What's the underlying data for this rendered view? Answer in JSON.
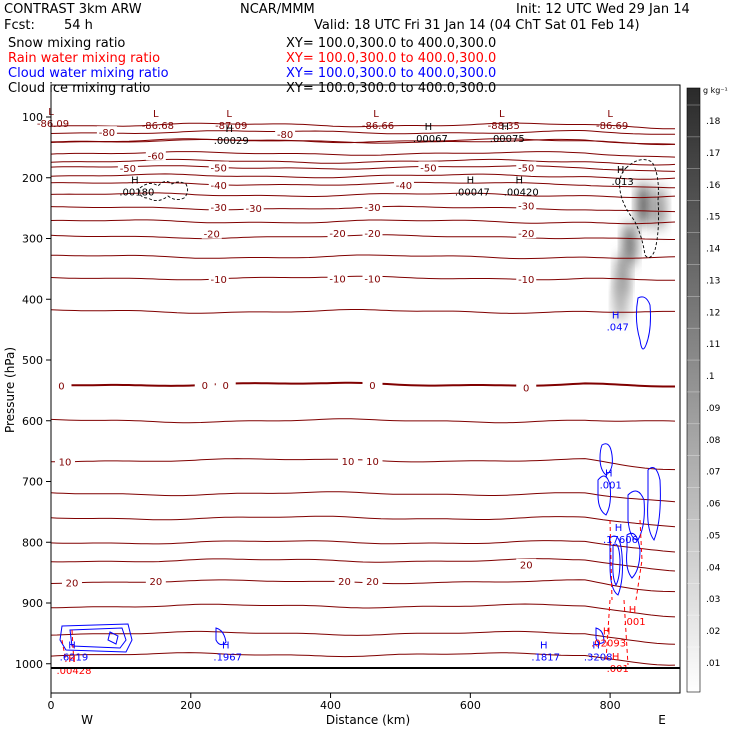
{
  "header": {
    "model": "CONTRAST  3km ARW",
    "org": "NCAR/MMM",
    "init": "Init: 12 UTC Wed 29 Jan 14",
    "fcst_label": "Fcst:",
    "fcst_value": "54 h",
    "valid": "Valid: 18 UTC Fri 31 Jan 14 (04 ChT Sat 01 Feb 14)"
  },
  "legend": [
    {
      "label": "Snow mixing ratio",
      "xy": "XY= 100.0,300.0 to 400.0,300.0",
      "color": "#000000"
    },
    {
      "label": "Rain water mixing ratio",
      "xy": "XY= 100.0,300.0 to 400.0,300.0",
      "color": "#ff0000"
    },
    {
      "label": "Cloud water mixing ratio",
      "xy": "XY= 100.0,300.0 to 400.0,300.0",
      "color": "#0000ff"
    },
    {
      "label": "Cloud ice mixing ratio",
      "xy": "XY= 100.0,300.0 to 400.0,300.0",
      "color": "#000000"
    }
  ],
  "colors": {
    "temperature": "#800000",
    "rain": "#ff0000",
    "cloud_water": "#0000ff",
    "snow": "#000000",
    "frame": "#000000"
  },
  "chart_data": {
    "type": "cross-section",
    "xlabel": "Distance (km)",
    "ylabel": "Pressure (hPa)",
    "xlim": [
      0,
      900
    ],
    "ylim": [
      1040,
      50
    ],
    "x_ticks": [
      0,
      200,
      400,
      600,
      800
    ],
    "x_tick_labels": [
      "0",
      "200",
      "400",
      "600",
      "800"
    ],
    "y_ticks": [
      100,
      200,
      300,
      400,
      500,
      600,
      700,
      800,
      900,
      1000
    ],
    "y_tick_labels": [
      "100",
      "200",
      "300",
      "400",
      "500",
      "600",
      "700",
      "800",
      "900",
      "1000"
    ],
    "west_label": "W",
    "east_label": "E",
    "colorbar": {
      "unit": "g kg⁻¹",
      "values": [
        0.01,
        0.02,
        0.03,
        0.04,
        0.05,
        0.06,
        0.07,
        0.08,
        0.09,
        0.1,
        0.11,
        0.12,
        0.13,
        0.14,
        0.15,
        0.16,
        0.17,
        0.18
      ],
      "labels": [
        ".01",
        ".02",
        ".03",
        ".04",
        ".05",
        ".06",
        ".07",
        ".08",
        ".09",
        ".1",
        ".11",
        ".12",
        ".13",
        ".14",
        ".15",
        ".16",
        ".17",
        ".18"
      ]
    },
    "isotherms": [
      {
        "t": -80,
        "p": 125
      },
      {
        "t": -70,
        "p": 140
      },
      {
        "t": -60,
        "p": 160
      },
      {
        "t": -50,
        "p": 183
      },
      {
        "t": -40,
        "p": 210
      },
      {
        "t": -30,
        "p": 250
      },
      {
        "t": -20,
        "p": 297
      },
      {
        "t": -10,
        "p": 365
      },
      {
        "t": 0,
        "p": 540
      },
      {
        "t": 10,
        "p": 665
      },
      {
        "t": 20,
        "p": 865
      }
    ],
    "contour_labels": [
      {
        "text": "-80",
        "x": 80,
        "p": 125,
        "kind": "temp"
      },
      {
        "text": "-80",
        "x": 335,
        "p": 128,
        "kind": "temp"
      },
      {
        "text": "-60",
        "x": 150,
        "p": 163,
        "kind": "temp"
      },
      {
        "text": "-50",
        "x": 110,
        "p": 184,
        "kind": "temp"
      },
      {
        "text": "-50",
        "x": 240,
        "p": 183,
        "kind": "temp"
      },
      {
        "text": "-50",
        "x": 540,
        "p": 183,
        "kind": "temp"
      },
      {
        "text": "-50",
        "x": 680,
        "p": 183,
        "kind": "temp"
      },
      {
        "text": "-40",
        "x": 240,
        "p": 212,
        "kind": "temp"
      },
      {
        "text": "-40",
        "x": 505,
        "p": 212,
        "kind": "temp"
      },
      {
        "text": "-30",
        "x": 240,
        "p": 248,
        "kind": "temp"
      },
      {
        "text": "-30",
        "x": 290,
        "p": 250,
        "kind": "temp"
      },
      {
        "text": "-30",
        "x": 460,
        "p": 248,
        "kind": "temp"
      },
      {
        "text": "-30",
        "x": 680,
        "p": 246,
        "kind": "temp"
      },
      {
        "text": "-20",
        "x": 230,
        "p": 292,
        "kind": "temp"
      },
      {
        "text": "-20",
        "x": 410,
        "p": 291,
        "kind": "temp"
      },
      {
        "text": "-20",
        "x": 460,
        "p": 291,
        "kind": "temp"
      },
      {
        "text": "-20",
        "x": 680,
        "p": 291,
        "kind": "temp"
      },
      {
        "text": "-10",
        "x": 240,
        "p": 367,
        "kind": "temp"
      },
      {
        "text": "-10",
        "x": 410,
        "p": 366,
        "kind": "temp"
      },
      {
        "text": "-10",
        "x": 460,
        "p": 366,
        "kind": "temp"
      },
      {
        "text": "-10",
        "x": 680,
        "p": 367,
        "kind": "temp"
      },
      {
        "text": "0",
        "x": 15,
        "p": 542,
        "kind": "temp"
      },
      {
        "text": "0",
        "x": 220,
        "p": 541,
        "kind": "temp"
      },
      {
        "text": "0",
        "x": 250,
        "p": 541,
        "kind": "temp"
      },
      {
        "text": "0",
        "x": 460,
        "p": 541,
        "kind": "temp"
      },
      {
        "text": "0",
        "x": 680,
        "p": 545,
        "kind": "temp"
      },
      {
        "text": "10",
        "x": 20,
        "p": 667,
        "kind": "temp"
      },
      {
        "text": "10",
        "x": 425,
        "p": 666,
        "kind": "temp"
      },
      {
        "text": "10",
        "x": 460,
        "p": 666,
        "kind": "temp"
      },
      {
        "text": "20",
        "x": 30,
        "p": 866,
        "kind": "temp"
      },
      {
        "text": "20",
        "x": 150,
        "p": 864,
        "kind": "temp"
      },
      {
        "text": "20",
        "x": 420,
        "p": 864,
        "kind": "temp"
      },
      {
        "text": "20",
        "x": 460,
        "p": 864,
        "kind": "temp"
      },
      {
        "text": "20",
        "x": 680,
        "p": 837,
        "kind": "temp"
      }
    ],
    "extrema": [
      {
        "mark": "L",
        "value": "-86.09",
        "x": 0,
        "p": 105,
        "kind": "temp"
      },
      {
        "mark": "L",
        "value": "-86.68",
        "x": 150,
        "p": 108,
        "kind": "temp"
      },
      {
        "mark": "L",
        "value": "-87.09",
        "x": 255,
        "p": 108,
        "kind": "temp"
      },
      {
        "mark": "L",
        "value": "-86.66",
        "x": 465,
        "p": 108,
        "kind": "temp"
      },
      {
        "mark": "L",
        "value": "-88.35",
        "x": 645,
        "p": 108,
        "kind": "temp"
      },
      {
        "mark": "L",
        "value": "-86.69",
        "x": 800,
        "p": 108,
        "kind": "temp"
      },
      {
        "mark": "H",
        "value": ".00029",
        "x": 255,
        "p": 133,
        "kind": "snow"
      },
      {
        "mark": "H",
        "value": ".00067",
        "x": 540,
        "p": 130,
        "kind": "snow"
      },
      {
        "mark": "H",
        "value": ".00075",
        "x": 650,
        "p": 130,
        "kind": "snow"
      },
      {
        "mark": "H",
        "value": ".00180",
        "x": 120,
        "p": 218,
        "kind": "snow"
      },
      {
        "mark": "H",
        "value": ".00047",
        "x": 600,
        "p": 218,
        "kind": "snow"
      },
      {
        "mark": "H",
        "value": ".00420",
        "x": 670,
        "p": 218,
        "kind": "snow"
      },
      {
        "mark": "H",
        "value": ".013",
        "x": 815,
        "p": 200,
        "kind": "snow"
      },
      {
        "mark": "H",
        "value": ".047",
        "x": 808,
        "p": 440,
        "kind": "cloud"
      },
      {
        "mark": "H",
        "value": ".001",
        "x": 798,
        "p": 700,
        "kind": "cloud"
      },
      {
        "mark": "H",
        "value": ".17606",
        "x": 812,
        "p": 790,
        "kind": "cloud"
      },
      {
        "mark": "H",
        "value": ".001",
        "x": 832,
        "p": 925,
        "kind": "rain"
      },
      {
        "mark": "H",
        "value": ".02093",
        "x": 795,
        "p": 960,
        "kind": "rain"
      },
      {
        "mark": "H",
        "value": ".6219",
        "x": 30,
        "p": 983,
        "kind": "cloud"
      },
      {
        "mark": "H",
        "value": ".00428",
        "x": 30,
        "p": 1005,
        "kind": "rain"
      },
      {
        "mark": "H",
        "value": ".1967",
        "x": 250,
        "p": 983,
        "kind": "cloud"
      },
      {
        "mark": "H",
        "value": ".1817",
        "x": 705,
        "p": 983,
        "kind": "cloud"
      },
      {
        "mark": "H",
        "value": ".3208",
        "x": 780,
        "p": 983,
        "kind": "cloud"
      },
      {
        "mark": "H",
        "value": ".001",
        "x": 808,
        "p": 1002,
        "kind": "rain"
      }
    ],
    "snow_shading": [
      {
        "x": 848,
        "p": 245,
        "value": 0.18
      },
      {
        "x": 870,
        "p": 250,
        "value": 0.12
      },
      {
        "x": 828,
        "p": 310,
        "value": 0.16
      },
      {
        "x": 818,
        "p": 360,
        "value": 0.12
      },
      {
        "x": 815,
        "p": 400,
        "value": 0.09
      }
    ]
  }
}
